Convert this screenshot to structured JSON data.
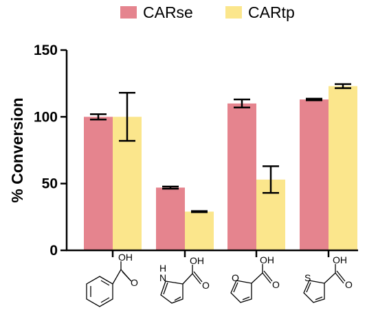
{
  "chart_data": {
    "type": "bar",
    "categories": [
      "",
      "",
      "",
      ""
    ],
    "series": [
      {
        "name": "CARse",
        "values": [
          100,
          47,
          110,
          113
        ],
        "errors": [
          2,
          0.8,
          3,
          0.6
        ],
        "color": "#e5848e"
      },
      {
        "name": "CARtp",
        "values": [
          100,
          29,
          53,
          123
        ],
        "errors": [
          18,
          0.4,
          10,
          1.5
        ],
        "color": "#fbe68c"
      }
    ],
    "ylabel": "% Conversion",
    "ylim": [
      0,
      150
    ],
    "yticks": [
      0,
      50,
      100,
      150
    ],
    "ytick_labels": [
      "0",
      "50",
      "100",
      "150"
    ],
    "legend_position": "top",
    "grid": false
  },
  "molecule_labels": {
    "benzoic_oh": "OH",
    "benzoic_o": "O",
    "pyrrole_nh": "H\nN",
    "pyrrole_oh": "OH",
    "pyrrole_o": "O",
    "furan_ring_o": "O",
    "furan_oh": "OH",
    "furan_o": "O",
    "thiophene_s": "S",
    "thiophene_oh": "OH",
    "thiophene_o": "O"
  },
  "colors": {
    "carse": "#e5848e",
    "cartp": "#fbe68c",
    "axis": "#000000"
  }
}
